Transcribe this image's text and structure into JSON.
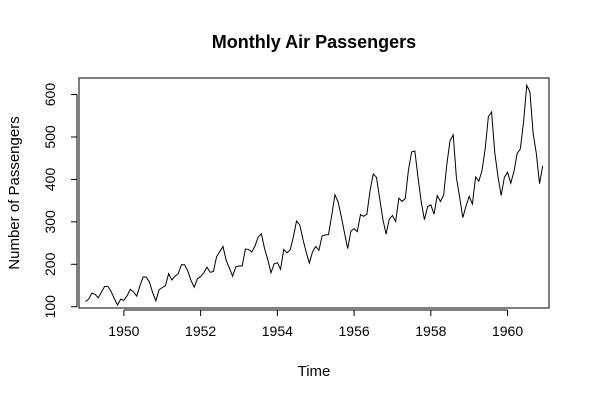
{
  "chart_data": {
    "type": "line",
    "title": "Monthly Air Passengers",
    "xlabel": "Time",
    "ylabel": "Number of Passengers",
    "xlim": [
      1948.83,
      1961.08
    ],
    "ylim": [
      97,
      639
    ],
    "x_ticks": [
      1950,
      1952,
      1954,
      1956,
      1958,
      1960
    ],
    "x_tick_labels": [
      "1950",
      "1952",
      "1954",
      "1956",
      "1958",
      "1960"
    ],
    "y_ticks": [
      100,
      200,
      300,
      400,
      500,
      600
    ],
    "y_tick_labels": [
      "100",
      "200",
      "300",
      "400",
      "500",
      "600"
    ],
    "grid": false,
    "line_color": "#000000",
    "series": [
      {
        "x_start": "1949-01",
        "x_step": "1 month",
        "values": [
          112,
          118,
          132,
          129,
          121,
          135,
          148,
          148,
          136,
          119,
          104,
          118,
          115,
          126,
          141,
          135,
          125,
          149,
          170,
          170,
          158,
          133,
          114,
          140,
          145,
          150,
          178,
          163,
          172,
          178,
          199,
          199,
          184,
          162,
          146,
          166,
          171,
          180,
          193,
          181,
          183,
          218,
          230,
          242,
          209,
          191,
          172,
          194,
          196,
          196,
          236,
          235,
          229,
          243,
          264,
          272,
          237,
          211,
          180,
          201,
          204,
          188,
          235,
          227,
          234,
          264,
          302,
          293,
          259,
          229,
          203,
          229,
          242,
          233,
          267,
          269,
          270,
          315,
          364,
          347,
          312,
          274,
          237,
          278,
          284,
          277,
          317,
          313,
          318,
          374,
          413,
          405,
          355,
          306,
          271,
          306,
          315,
          301,
          356,
          348,
          355,
          422,
          465,
          467,
          404,
          347,
          305,
          336,
          340,
          318,
          362,
          348,
          363,
          435,
          491,
          505,
          404,
          359,
          310,
          337,
          360,
          342,
          406,
          396,
          420,
          472,
          548,
          559,
          463,
          407,
          362,
          405,
          417,
          391,
          419,
          461,
          472,
          535,
          622,
          606,
          508,
          461,
          390,
          432
        ]
      }
    ]
  }
}
